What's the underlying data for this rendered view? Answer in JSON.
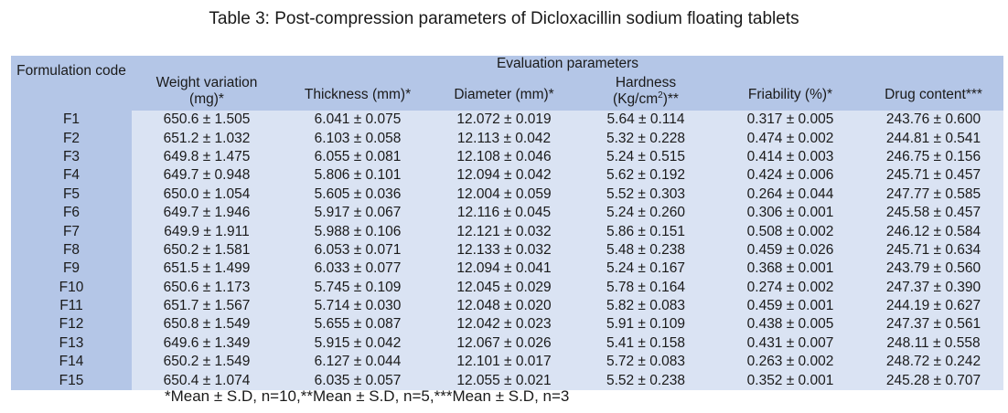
{
  "title": "Table 3: Post-compression parameters of Dicloxacillin sodium floating tablets",
  "table": {
    "group_header": "Evaluation parameters",
    "headers": {
      "code": "Formulation code",
      "weight": "Weight variation (mg)*",
      "thickness": "Thickness (mm)*",
      "diameter": "Diameter (mm)*",
      "hardness_label": "Hardness",
      "hardness_unit_pre": "(Kg/cm",
      "hardness_sup": "2",
      "hardness_unit_post": ")**",
      "friability": "Friability (%)*",
      "drug": "Drug content***"
    },
    "rows": [
      [
        "F1",
        "650.6 ± 1.505",
        "6.041 ± 0.075",
        "12.072 ± 0.019",
        "5.64 ± 0.114",
        "0.317 ± 0.005",
        "243.76 ± 0.600"
      ],
      [
        "F2",
        "651.2 ± 1.032",
        "6.103 ± 0.058",
        "12.113 ± 0.042",
        "5.32 ± 0.228",
        "0.474 ± 0.002",
        "244.81 ± 0.541"
      ],
      [
        "F3",
        "649.8 ± 1.475",
        "6.055 ± 0.081",
        "12.108 ± 0.046",
        "5.24 ± 0.515",
        "0.414 ± 0.003",
        "246.75 ± 0.156"
      ],
      [
        "F4",
        "649.7 ± 0.948",
        "5.806 ± 0.101",
        "12.094 ± 0.042",
        "5.62 ± 0.192",
        "0.424 ± 0.006",
        "245.71 ± 0.457"
      ],
      [
        "F5",
        "650.0 ± 1.054",
        "5.605 ± 0.036",
        "12.004 ± 0.059",
        "5.52 ± 0.303",
        "0.264 ± 0.044",
        "247.77 ± 0.585"
      ],
      [
        "F6",
        "649.7 ± 1.946",
        "5.917 ± 0.067",
        "12.116 ± 0.045",
        "5.24 ± 0.260",
        "0.306 ± 0.001",
        "245.58 ± 0.457"
      ],
      [
        "F7",
        "649.9 ± 1.911",
        "5.988 ± 0.106",
        "12.121 ± 0.032",
        "5.86 ± 0.151",
        "0.508 ± 0.002",
        "246.12 ± 0.584"
      ],
      [
        "F8",
        "650.2 ± 1.581",
        "6.053 ± 0.071",
        "12.133 ± 0.032",
        "5.48 ± 0.238",
        "0.459 ± 0.026",
        "245.71 ± 0.634"
      ],
      [
        "F9",
        "651.5 ± 1.499",
        "6.033 ± 0.077",
        "12.094 ± 0.041",
        "5.24 ± 0.167",
        "0.368 ± 0.001",
        "243.79 ± 0.560"
      ],
      [
        "F10",
        "650.6 ± 1.173",
        "5.745 ± 0.109",
        "12.045 ± 0.029",
        "5.78 ± 0.164",
        "0.274 ± 0.002",
        "247.37 ± 0.390"
      ],
      [
        "F11",
        "651.7 ± 1.567",
        "5.714 ± 0.030",
        "12.048 ± 0.020",
        "5.82 ± 0.083",
        "0.459 ± 0.001",
        "244.19 ± 0.627"
      ],
      [
        "F12",
        "650.8 ± 1.549",
        "5.655 ± 0.087",
        "12.042 ± 0.023",
        "5.91 ± 0.109",
        "0.438 ± 0.005",
        "247.37 ± 0.561"
      ],
      [
        "F13",
        "649.6 ± 1.349",
        "5.915 ± 0.042",
        "12.067 ± 0.026",
        "5.41 ± 0.158",
        "0.431 ± 0.007",
        "248.11 ± 0.558"
      ],
      [
        "F14",
        "650.2 ± 1.549",
        "6.127 ± 0.044",
        "12.101 ± 0.017",
        "5.72 ± 0.083",
        "0.263 ± 0.002",
        "248.72 ± 0.242"
      ],
      [
        "F15",
        "650.4 ± 1.074",
        "6.035 ± 0.057",
        "12.055 ± 0.021",
        "5.52 ± 0.238",
        "0.352 ± 0.001",
        "245.28 ± 0.707"
      ]
    ]
  },
  "footnote": "*Mean ± S.D, n=10,**Mean ± S.D, n=5,***Mean ± S.D, n=3",
  "colors": {
    "header_fill": "#b4c6e7",
    "body_fill": "#dae3f3"
  }
}
